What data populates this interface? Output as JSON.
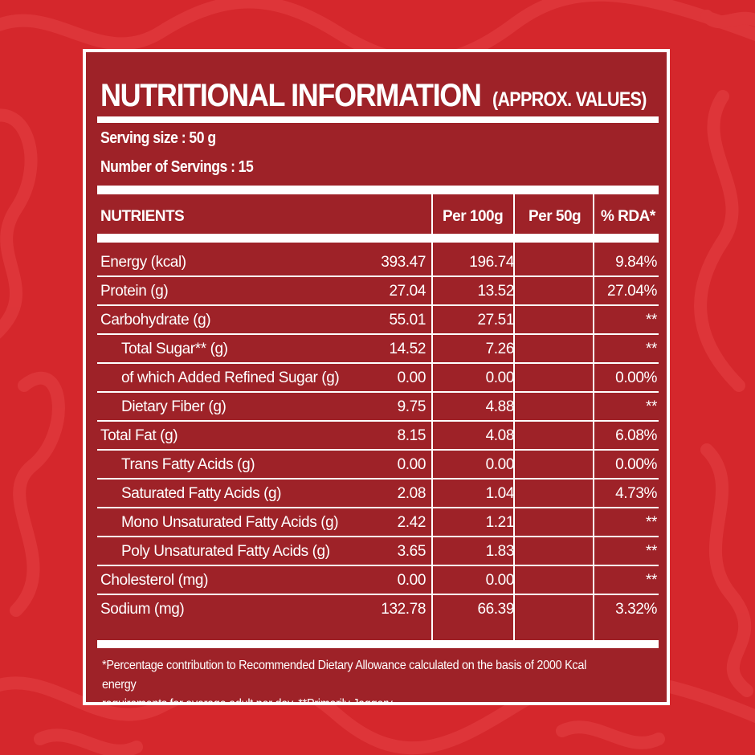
{
  "header": {
    "title": "NUTRITIONAL INFORMATION",
    "subtitle": "(APPROX. VALUES)"
  },
  "serving": {
    "size_line": "Serving size : 50 g",
    "count_line": "Number of Servings : 15"
  },
  "table": {
    "columns": [
      "NUTRIENTS",
      "Per 100g",
      "Per 50g",
      "% RDA*"
    ],
    "rows": [
      {
        "name": "Energy (kcal)",
        "indent": false,
        "per100": "393.47",
        "per50": "196.74",
        "rda": "9.84%"
      },
      {
        "name": "Protein (g)",
        "indent": false,
        "per100": "27.04",
        "per50": "13.52",
        "rda": "27.04%"
      },
      {
        "name": "Carbohydrate (g)",
        "indent": false,
        "per100": "55.01",
        "per50": "27.51",
        "rda": "**"
      },
      {
        "name": "Total Sugar** (g)",
        "indent": true,
        "per100": "14.52",
        "per50": "7.26",
        "rda": "**"
      },
      {
        "name": "of which Added Refined Sugar (g)",
        "indent": true,
        "per100": "0.00",
        "per50": "0.00",
        "rda": "0.00%"
      },
      {
        "name": "Dietary Fiber (g)",
        "indent": true,
        "per100": "9.75",
        "per50": "4.88",
        "rda": "**"
      },
      {
        "name": "Total Fat (g)",
        "indent": false,
        "per100": "8.15",
        "per50": "4.08",
        "rda": "6.08%"
      },
      {
        "name": "Trans Fatty Acids (g)",
        "indent": true,
        "per100": "0.00",
        "per50": "0.00",
        "rda": "0.00%"
      },
      {
        "name": "Saturated Fatty Acids (g)",
        "indent": true,
        "per100": "2.08",
        "per50": "1.04",
        "rda": "4.73%"
      },
      {
        "name": "Mono Unsaturated Fatty Acids (g)",
        "indent": true,
        "per100": "2.42",
        "per50": "1.21",
        "rda": "**"
      },
      {
        "name": "Poly Unsaturated Fatty Acids (g)",
        "indent": true,
        "per100": "3.65",
        "per50": "1.83",
        "rda": "**"
      },
      {
        "name": "Cholesterol (mg)",
        "indent": false,
        "per100": "0.00",
        "per50": "0.00",
        "rda": "**"
      },
      {
        "name": "Sodium (mg)",
        "indent": false,
        "per100": "132.78",
        "per50": "66.39",
        "rda": "3.32%"
      }
    ]
  },
  "footnote": {
    "line1": "*Percentage contribution to Recommended Dietary Allowance calculated on the basis of 2000 Kcal energy",
    "line2": "requirements for average adult per day. **Primarily Jaggery."
  },
  "colors": {
    "background": "#d5272c",
    "panel": "#9e2228",
    "text": "#ffffff"
  }
}
